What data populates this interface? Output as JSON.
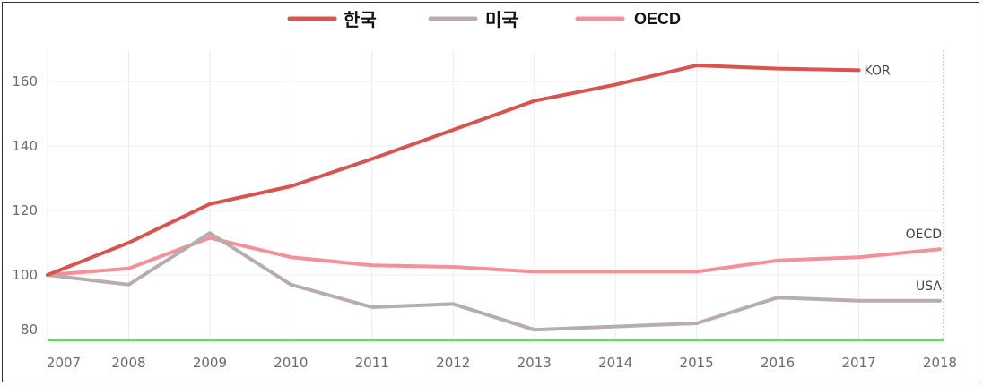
{
  "chart_data": {
    "type": "line",
    "x": [
      2007,
      2008,
      2009,
      2010,
      2011,
      2012,
      2013,
      2014,
      2015,
      2016,
      2017,
      2018
    ],
    "y_ticks": [
      80,
      100,
      120,
      140,
      160
    ],
    "ylim": [
      75,
      170
    ],
    "series": [
      {
        "name": "한국",
        "end_label": "KOR",
        "color": "#d9534f",
        "values": [
          100,
          110,
          122,
          127.5,
          136,
          145,
          154,
          159,
          165,
          164,
          163.5,
          null
        ]
      },
      {
        "name": "미국",
        "end_label": "USA",
        "color": "#b7aeac",
        "values": [
          100,
          97,
          113,
          97,
          90,
          91,
          83,
          84,
          85,
          93,
          92,
          92
        ]
      },
      {
        "name": "OECD",
        "end_label": "OECD",
        "color": "#f4909a",
        "values": [
          100,
          102,
          111.5,
          105.5,
          103,
          102.5,
          101,
          101,
          101,
          104.5,
          105.5,
          108
        ]
      }
    ],
    "baseline": {
      "value": 77,
      "color": "#22dd22"
    },
    "grid": true,
    "legend": "top-center"
  }
}
